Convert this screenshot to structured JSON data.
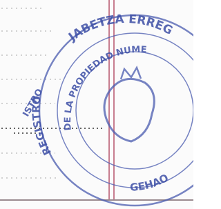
{
  "stamp": {
    "outer_top": "JABETZA ERREG",
    "inner_top": "DE LA PROPIEDAD NUME",
    "outer_left": "REGISTRO",
    "inner_left": "ISTRO",
    "bottom": "GEHAO"
  }
}
